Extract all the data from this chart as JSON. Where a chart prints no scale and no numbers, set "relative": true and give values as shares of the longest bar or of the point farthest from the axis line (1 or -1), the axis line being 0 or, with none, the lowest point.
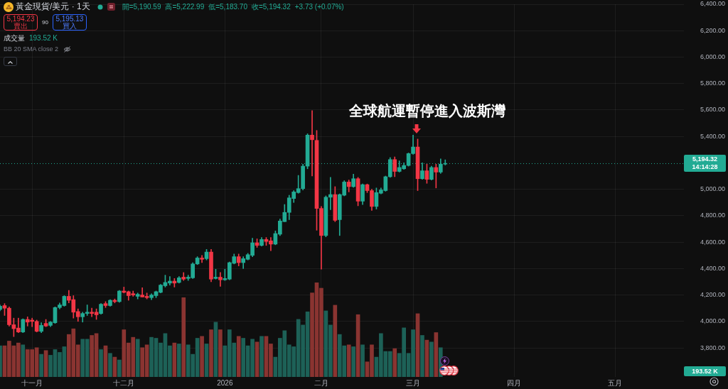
{
  "chart_data": [
    {
      "type": "candlestick",
      "title": "黃金現貨/美元 · 1天",
      "categories": [
        null,
        null,
        null,
        null,
        null,
        null,
        null,
        "十一月",
        null,
        null,
        null,
        null,
        null,
        null,
        null,
        null,
        null,
        null,
        null,
        null,
        null,
        null,
        null,
        null,
        null,
        null,
        null,
        "十二月",
        null,
        null,
        null,
        null,
        null,
        null,
        null,
        null,
        null,
        null,
        null,
        null,
        null,
        null,
        null,
        null,
        null,
        null,
        null,
        null,
        null,
        "2026",
        null,
        null,
        null,
        null,
        null,
        null,
        null,
        null,
        null,
        null,
        null,
        null,
        null,
        null,
        null,
        null,
        null,
        null,
        null,
        null,
        "二月",
        null,
        null,
        null,
        null,
        null,
        null,
        null,
        null,
        null,
        null,
        null,
        null,
        null,
        null,
        null,
        null,
        null,
        null,
        null,
        "三月",
        null,
        null,
        null,
        null,
        null,
        null,
        null,
        null,
        null,
        null,
        null,
        null,
        null,
        null,
        null,
        null,
        null,
        null,
        null,
        null,
        null,
        "四月",
        null,
        null,
        null,
        null,
        null,
        null,
        null,
        null,
        null,
        null,
        null,
        null,
        null,
        null,
        null,
        null,
        null,
        null,
        null,
        null,
        null,
        "五月",
        null,
        null,
        null,
        null,
        null,
        null,
        null,
        null,
        null,
        null,
        null,
        null,
        null,
        null,
        null
      ],
      "ohlc": [
        [
          4090,
          4125,
          4080,
          4115
        ],
        [
          4120,
          4135,
          4045,
          4100
        ],
        [
          4100,
          4110,
          3965,
          3975
        ],
        [
          3975,
          4025,
          3885,
          3945
        ],
        [
          3950,
          4025,
          3915,
          3920
        ],
        [
          3920,
          4020,
          3915,
          4015
        ],
        [
          4015,
          4035,
          3965,
          3995
        ],
        [
          4010,
          4025,
          3960,
          4000
        ],
        [
          4000,
          4010,
          3920,
          3925
        ],
        [
          3925,
          3990,
          3915,
          3970
        ],
        [
          3985,
          4015,
          3960,
          3965
        ],
        [
          3970,
          4000,
          3960,
          3995
        ],
        [
          3990,
          4110,
          3985,
          4105
        ],
        [
          4105,
          4140,
          4095,
          4125
        ],
        [
          4120,
          4195,
          4115,
          4190
        ],
        [
          4190,
          4235,
          4140,
          4160
        ],
        [
          4165,
          4195,
          4025,
          4070
        ],
        [
          4075,
          4095,
          4000,
          4035
        ],
        [
          4035,
          4070,
          3995,
          4060
        ],
        [
          4060,
          4125,
          4045,
          4070
        ],
        [
          4070,
          4100,
          4035,
          4060
        ],
        [
          4070,
          4095,
          4015,
          4050
        ],
        [
          4060,
          4135,
          4055,
          4130
        ],
        [
          4135,
          4150,
          4105,
          4120
        ],
        [
          4120,
          4165,
          4115,
          4160
        ],
        [
          4160,
          4170,
          4140,
          4150
        ],
        [
          4150,
          4235,
          4145,
          4230
        ],
        [
          4230,
          4260,
          4215,
          4220
        ],
        [
          4225,
          4230,
          4160,
          4195
        ],
        [
          4210,
          4230,
          4190,
          4200
        ],
        [
          4190,
          4215,
          4170,
          4205
        ],
        [
          4200,
          4255,
          4185,
          4185
        ],
        [
          4190,
          4215,
          4170,
          4180
        ],
        [
          4180,
          4210,
          4165,
          4200
        ],
        [
          4195,
          4230,
          4180,
          4225
        ],
        [
          4220,
          4280,
          4215,
          4275
        ],
        [
          4270,
          4350,
          4260,
          4295
        ],
        [
          4290,
          4340,
          4275,
          4305
        ],
        [
          4305,
          4325,
          4260,
          4290
        ],
        [
          4295,
          4340,
          4290,
          4330
        ],
        [
          4335,
          4370,
          4310,
          4320
        ],
        [
          4325,
          4350,
          4310,
          4335
        ],
        [
          4330,
          4445,
          4325,
          4435
        ],
        [
          4435,
          4490,
          4430,
          4480
        ],
        [
          4480,
          4500,
          4445,
          4470
        ],
        [
          4475,
          4545,
          4465,
          4525
        ],
        [
          4525,
          4545,
          4300,
          4320
        ],
        [
          4325,
          4395,
          4320,
          4335
        ],
        [
          4335,
          4370,
          4265,
          4315
        ],
        [
          4315,
          4395,
          4310,
          4325
        ],
        [
          4320,
          4450,
          4315,
          4445
        ],
        [
          4440,
          4510,
          4435,
          4490
        ],
        [
          4490,
          4510,
          4420,
          4445
        ],
        [
          4445,
          4490,
          4400,
          4475
        ],
        [
          4470,
          4515,
          4465,
          4505
        ],
        [
          4500,
          4630,
          4490,
          4595
        ],
        [
          4595,
          4625,
          4560,
          4575
        ],
        [
          4575,
          4635,
          4570,
          4620
        ],
        [
          4620,
          4635,
          4575,
          4605
        ],
        [
          4610,
          4635,
          4535,
          4585
        ],
        [
          4585,
          4685,
          4580,
          4665
        ],
        [
          4660,
          4775,
          4650,
          4760
        ],
        [
          4755,
          4885,
          4755,
          4825
        ],
        [
          4825,
          4955,
          4770,
          4935
        ],
        [
          4930,
          4990,
          4900,
          4980
        ],
        [
          4975,
          5105,
          4970,
          5005
        ],
        [
          5005,
          5190,
          4995,
          5175
        ],
        [
          5175,
          5420,
          5155,
          5410
        ],
        [
          5410,
          5595,
          5100,
          5375
        ],
        [
          5370,
          5445,
          4690,
          4855
        ],
        [
          4855,
          4870,
          4395,
          4650
        ],
        [
          4650,
          4950,
          4640,
          4940
        ],
        [
          4940,
          5090,
          4845,
          4960
        ],
        [
          4960,
          5020,
          4755,
          4765
        ],
        [
          4770,
          4965,
          4650,
          4960
        ],
        [
          4955,
          5065,
          4950,
          5055
        ],
        [
          5055,
          5070,
          4980,
          5020
        ],
        [
          5020,
          5115,
          5015,
          5080
        ],
        [
          5080,
          5090,
          4875,
          4910
        ],
        [
          4910,
          5040,
          4885,
          5035
        ],
        [
          5035,
          5040,
          4975,
          4990
        ],
        [
          4990,
          5000,
          4840,
          4870
        ],
        [
          4870,
          5010,
          4850,
          4975
        ],
        [
          4970,
          5010,
          4965,
          4995
        ],
        [
          4990,
          5100,
          4985,
          5095
        ],
        [
          5095,
          5240,
          5090,
          5225
        ],
        [
          5225,
          5245,
          5095,
          5135
        ],
        [
          5135,
          5215,
          5130,
          5165
        ],
        [
          5155,
          5200,
          5150,
          5180
        ],
        [
          5180,
          5275,
          5175,
          5270
        ],
        [
          5270,
          5410,
          5265,
          5320
        ],
        [
          5320,
          5380,
          4990,
          5080
        ],
        [
          5080,
          5200,
          5075,
          5140
        ],
        [
          5140,
          5190,
          5045,
          5075
        ],
        [
          5075,
          5175,
          5070,
          5165
        ],
        [
          5165,
          5190,
          5010,
          5130
        ],
        [
          5130,
          5230,
          5120,
          5190
        ],
        [
          5190.59,
          5222.99,
          5183.7,
          5194.32
        ],
        null,
        null,
        null,
        null,
        null,
        null,
        null,
        null,
        null,
        null,
        null,
        null,
        null,
        null,
        null,
        null,
        null,
        null,
        null,
        null,
        null,
        null,
        null,
        null,
        null,
        null,
        null,
        null,
        null,
        null,
        null,
        null,
        null,
        null,
        null,
        null,
        null,
        null,
        null,
        null,
        null,
        null,
        null,
        null,
        null,
        null,
        null,
        null,
        null,
        null,
        null,
        null
      ],
      "colors": [
        "#22ab94",
        "#f23645",
        "#f23645",
        "#f23645",
        "#f23645",
        "#22ab94",
        "#f23645",
        "#f23645",
        "#f23645",
        "#22ab94",
        "#f23645",
        "#22ab94",
        "#22ab94",
        "#22ab94",
        "#22ab94",
        "#f23645",
        "#f23645",
        "#f23645",
        "#22ab94",
        "#22ab94",
        "#f23645",
        "#f23645",
        "#22ab94",
        "#f23645",
        "#22ab94",
        "#f23645",
        "#22ab94",
        "#f23645",
        "#f23645",
        "#f23645",
        "#22ab94",
        "#f23645",
        "#f23645",
        "#22ab94",
        "#22ab94",
        "#22ab94",
        "#22ab94",
        "#22ab94",
        "#f23645",
        "#22ab94",
        "#f23645",
        "#22ab94",
        "#22ab94",
        "#22ab94",
        "#f23645",
        "#22ab94",
        "#f23645",
        "#22ab94",
        "#f23645",
        "#22ab94",
        "#22ab94",
        "#22ab94",
        "#f23645",
        "#22ab94",
        "#22ab94",
        "#22ab94",
        "#f23645",
        "#22ab94",
        "#f23645",
        "#f23645",
        "#22ab94",
        "#22ab94",
        "#22ab94",
        "#22ab94",
        "#22ab94",
        "#22ab94",
        "#22ab94",
        "#22ab94",
        "#f23645",
        "#f23645",
        "#f23645",
        "#22ab94",
        "#22ab94",
        "#f23645",
        "#22ab94",
        "#22ab94",
        "#f23645",
        "#22ab94",
        "#f23645",
        "#22ab94",
        "#f23645",
        "#f23645",
        "#22ab94",
        "#22ab94",
        "#22ab94",
        "#22ab94",
        "#f23645",
        "#22ab94",
        "#22ab94",
        "#22ab94",
        "#22ab94",
        "#f23645",
        "#22ab94",
        "#f23645",
        "#22ab94",
        "#f23645",
        "#22ab94",
        "#22ab94",
        null,
        null,
        null,
        null,
        null,
        null,
        null,
        null,
        null,
        null,
        null,
        null,
        null,
        null,
        null,
        null,
        null,
        null,
        null,
        null,
        null,
        null,
        null,
        null,
        null,
        null,
        null,
        null,
        null,
        null,
        null,
        null,
        null,
        null,
        null,
        null,
        null,
        null,
        null,
        null,
        null,
        null,
        null,
        null,
        null,
        null,
        null,
        null,
        null,
        null,
        null,
        null
      ],
      "ylim": [
        3580,
        6400
      ],
      "yticks": [
        {
          "value": 3800,
          "label": "3,800.00"
        },
        {
          "value": 4000,
          "label": "4,000.00"
        },
        {
          "value": 4200,
          "label": "4,200.00"
        },
        {
          "value": 4400,
          "label": "4,400.00"
        },
        {
          "value": 4600,
          "label": "4,600.00"
        },
        {
          "value": 4800,
          "label": "4,800.00"
        },
        {
          "value": 5000,
          "label": "5,000.00"
        },
        {
          "value": 5200,
          "label": null
        },
        {
          "value": 5400,
          "label": "5,400.00"
        },
        {
          "value": 5600,
          "label": "5,600.00"
        },
        {
          "value": 5800,
          "label": "5,800.00"
        },
        {
          "value": 6000,
          "label": "6,000.00"
        },
        {
          "value": 6200,
          "label": "6,200.00"
        },
        {
          "value": 6400,
          "label": "6,400.00"
        }
      ],
      "grid": true,
      "ref_lines": [
        {
          "axis": "y",
          "value": 5194.32,
          "label": "5,194.32",
          "color": "#22ab94",
          "line_style": "dotted"
        }
      ],
      "annotations": [
        "全球航運暫停進入波斯灣",
        "開=5,190.59",
        "高=5,222.99",
        "低=5,183.70",
        "收=5,194.32",
        "+3.73 (+0.07%)",
        "5,194.23",
        "賣出",
        "90",
        "5,195.13",
        "買入",
        "BB 20 SMA close 2",
        "14:14:28"
      ]
    },
    {
      "type": "bar",
      "title": "成交量",
      "relative": true,
      "categories": [
        null,
        null,
        null,
        null,
        null,
        null,
        null,
        null,
        null,
        null,
        null,
        null,
        null,
        null,
        null,
        null,
        null,
        null,
        null,
        null,
        null,
        null,
        null,
        null,
        null,
        null,
        null,
        null,
        null,
        null,
        null,
        null,
        null,
        null,
        null,
        null,
        null,
        null,
        null,
        null,
        null,
        null,
        null,
        null,
        null,
        null,
        null,
        null,
        null,
        null,
        null,
        null,
        null,
        null,
        null,
        null,
        null,
        null,
        null,
        null,
        null,
        null,
        null,
        null,
        null,
        null,
        null,
        null,
        null,
        null,
        null,
        null,
        null,
        null,
        null,
        null,
        null,
        null,
        null,
        null,
        null,
        null,
        null,
        null,
        null,
        null,
        null,
        null,
        null,
        null,
        null,
        null,
        null,
        null,
        null,
        null,
        null,
        null,
        null,
        null,
        null,
        null,
        null,
        null,
        null,
        null,
        null,
        null,
        null,
        null,
        null,
        null,
        null,
        null,
        null,
        null,
        null,
        null,
        null,
        null,
        null,
        null,
        null,
        null,
        null,
        null,
        null,
        null,
        null,
        null,
        null,
        null,
        null,
        null,
        null,
        null,
        null,
        null,
        null,
        null,
        null,
        null,
        null,
        null,
        null,
        null,
        null,
        null,
        null,
        null
      ],
      "values": [
        0.33,
        0.33,
        0.38,
        0.33,
        0.36,
        0.34,
        0.29,
        0.29,
        0.31,
        0.24,
        0.28,
        0.23,
        0.29,
        0.26,
        0.32,
        0.45,
        0.51,
        0.34,
        0.4,
        0.4,
        0.44,
        0.46,
        0.29,
        0.33,
        0.25,
        0.21,
        0.18,
        0.5,
        0.36,
        0.42,
        0.4,
        0.31,
        0.34,
        0.42,
        0.41,
        0.36,
        0.46,
        0.33,
        0.36,
        0.35,
        0.84,
        0.34,
        0.24,
        0.41,
        0.43,
        0.35,
        0.5,
        0.58,
        0.5,
        0.33,
        0.5,
        0.36,
        0.43,
        0.41,
        0.33,
        0.4,
        0.37,
        0.43,
        0.43,
        0.35,
        0.21,
        0.41,
        0.49,
        0.34,
        0.32,
        0.61,
        0.55,
        0.69,
        0.89,
        1,
        0.94,
        0.7,
        0.55,
        0.76,
        0.45,
        0.33,
        0.34,
        0.32,
        0.66,
        0.34,
        0.16,
        0.34,
        0.21,
        0.46,
        0.27,
        0.27,
        0.3,
        0.25,
        0.52,
        0.25,
        0.5,
        0.67,
        0.44,
        0.39,
        0.37,
        0.47,
        0.31,
        null,
        null,
        null,
        null,
        null,
        null,
        null,
        null,
        null,
        null,
        null,
        null,
        null,
        null,
        null,
        null,
        null,
        null,
        null,
        null,
        null,
        null,
        null,
        null,
        null,
        null,
        null,
        null,
        null,
        null,
        null,
        null,
        null,
        null,
        null,
        null,
        null,
        null,
        null,
        null,
        null,
        null,
        null,
        null,
        null,
        null,
        null,
        null,
        null,
        null,
        null,
        null,
        null
      ],
      "colors": [
        "#1d6157",
        "#8a3431",
        "#8a3431",
        "#8a3431",
        "#8a3431",
        "#1d6157",
        "#8a3431",
        "#8a3431",
        "#8a3431",
        "#1d6157",
        "#8a3431",
        "#1d6157",
        "#1d6157",
        "#1d6157",
        "#1d6157",
        "#8a3431",
        "#8a3431",
        "#8a3431",
        "#1d6157",
        "#1d6157",
        "#8a3431",
        "#8a3431",
        "#1d6157",
        "#8a3431",
        "#1d6157",
        "#8a3431",
        "#1d6157",
        "#8a3431",
        "#8a3431",
        "#8a3431",
        "#1d6157",
        "#8a3431",
        "#8a3431",
        "#1d6157",
        "#1d6157",
        "#1d6157",
        "#1d6157",
        "#1d6157",
        "#8a3431",
        "#1d6157",
        "#8a3431",
        "#1d6157",
        "#1d6157",
        "#1d6157",
        "#8a3431",
        "#1d6157",
        "#8a3431",
        "#1d6157",
        "#8a3431",
        "#1d6157",
        "#1d6157",
        "#1d6157",
        "#8a3431",
        "#1d6157",
        "#1d6157",
        "#1d6157",
        "#8a3431",
        "#1d6157",
        "#8a3431",
        "#8a3431",
        "#1d6157",
        "#1d6157",
        "#1d6157",
        "#1d6157",
        "#1d6157",
        "#1d6157",
        "#1d6157",
        "#1d6157",
        "#8a3431",
        "#8a3431",
        "#8a3431",
        "#1d6157",
        "#1d6157",
        "#8a3431",
        "#1d6157",
        "#1d6157",
        "#8a3431",
        "#1d6157",
        "#8a3431",
        "#1d6157",
        "#8a3431",
        "#8a3431",
        "#1d6157",
        "#1d6157",
        "#1d6157",
        "#1d6157",
        "#8a3431",
        "#1d6157",
        "#1d6157",
        "#1d6157",
        "#1d6157",
        "#8a3431",
        "#1d6157",
        "#8a3431",
        "#1d6157",
        "#8a3431",
        "#1d6157",
        "#1d6157",
        null,
        null,
        null,
        null,
        null,
        null,
        null,
        null,
        null,
        null,
        null,
        null,
        null,
        null,
        null,
        null,
        null,
        null,
        null,
        null,
        null,
        null,
        null,
        null,
        null,
        null,
        null,
        null,
        null,
        null,
        null,
        null,
        null,
        null,
        null,
        null,
        null,
        null,
        null,
        null,
        null,
        null,
        null,
        null,
        null,
        null,
        null,
        null,
        null,
        null,
        null,
        null
      ],
      "annotations": [
        "193.52 K",
        "193.52 K"
      ]
    }
  ]
}
